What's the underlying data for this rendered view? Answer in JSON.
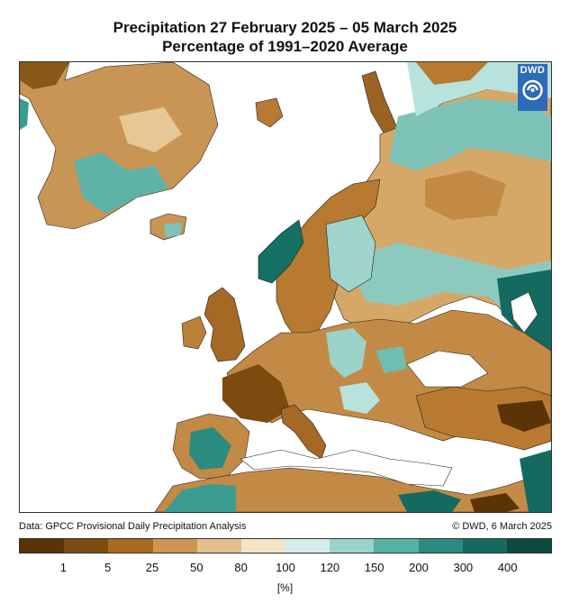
{
  "header": {
    "title_line1": "Precipitation 27 February 2025 – 05 March 2025",
    "title_line2": "Percentage of 1991–2020 Average"
  },
  "logo": {
    "text": "DWD",
    "icon": "dwd-swirl-icon"
  },
  "footer": {
    "source": "Data: GPCC Provisional Daily Precipitation Analysis",
    "copyright": "© DWD, 6 March 2025"
  },
  "legend": {
    "colors": [
      "#5a3405",
      "#7d4a10",
      "#a9691f",
      "#cc9652",
      "#e3c08c",
      "#f3e3c7",
      "#d6ecea",
      "#9bd2ca",
      "#55b1a4",
      "#2c8b80",
      "#146a60",
      "#0c4a40"
    ],
    "ticks": [
      "1",
      "5",
      "25",
      "50",
      "80",
      "100",
      "120",
      "150",
      "200",
      "300",
      "400"
    ],
    "unit": "[%]"
  },
  "map_layers": {
    "ocean": "#ffffff",
    "border_color": "#222222"
  }
}
